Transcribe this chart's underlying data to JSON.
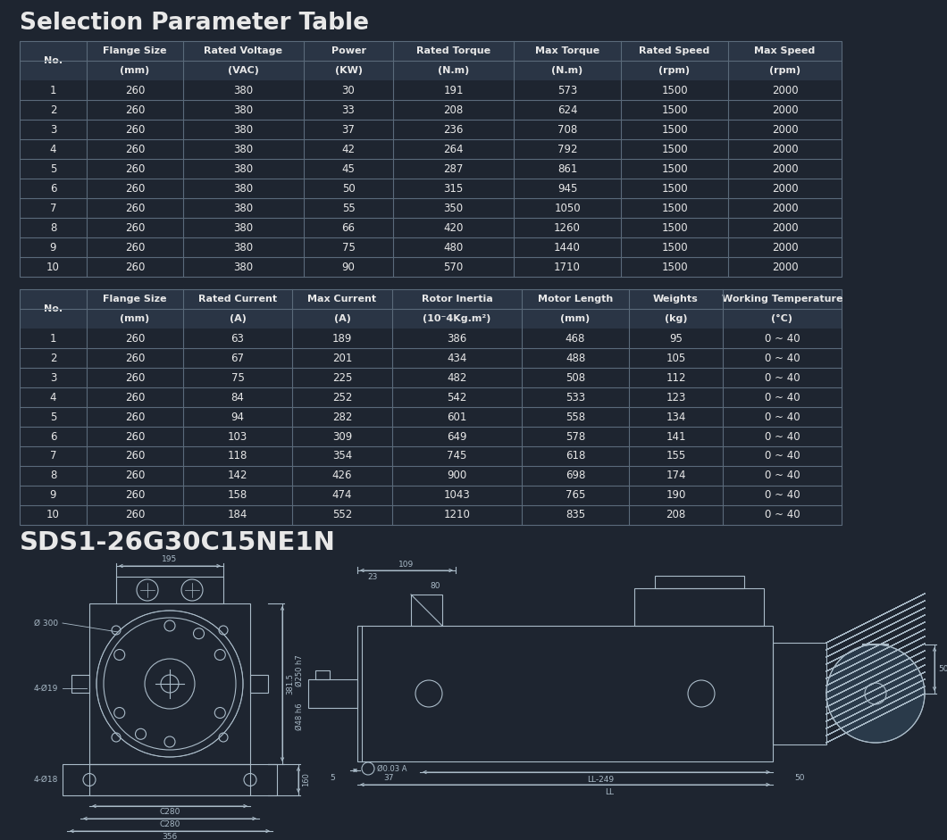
{
  "title": "Selection Parameter Table",
  "model": "SDS1-26G30C15NE1N",
  "bg_color": "#1e2530",
  "header_bg": "#2a3545",
  "text_color": "#e8e8e8",
  "border_color": "#5a6a7a",
  "line_color": "#aabbc8",
  "table1_col_headers": [
    "No.",
    "Flange Size",
    "Rated Voltage",
    "Power",
    "Rated Torque",
    "Max Torque",
    "Rated Speed",
    "Max Speed"
  ],
  "table1_col_subs": [
    "",
    "(mm)",
    "(VAC)",
    "(KW)",
    "(N.m)",
    "(N.m)",
    "(rpm)",
    "(rpm)"
  ],
  "table1_col_widths": [
    75,
    108,
    135,
    100,
    135,
    120,
    120,
    127
  ],
  "table1_data": [
    [
      "1",
      "260",
      "380",
      "30",
      "191",
      "573",
      "1500",
      "2000"
    ],
    [
      "2",
      "260",
      "380",
      "33",
      "208",
      "624",
      "1500",
      "2000"
    ],
    [
      "3",
      "260",
      "380",
      "37",
      "236",
      "708",
      "1500",
      "2000"
    ],
    [
      "4",
      "260",
      "380",
      "42",
      "264",
      "792",
      "1500",
      "2000"
    ],
    [
      "5",
      "260",
      "380",
      "45",
      "287",
      "861",
      "1500",
      "2000"
    ],
    [
      "6",
      "260",
      "380",
      "50",
      "315",
      "945",
      "1500",
      "2000"
    ],
    [
      "7",
      "260",
      "380",
      "55",
      "350",
      "1050",
      "1500",
      "2000"
    ],
    [
      "8",
      "260",
      "380",
      "66",
      "420",
      "1260",
      "1500",
      "2000"
    ],
    [
      "9",
      "260",
      "380",
      "75",
      "480",
      "1440",
      "1500",
      "2000"
    ],
    [
      "10",
      "260",
      "380",
      "90",
      "570",
      "1710",
      "1500",
      "2000"
    ]
  ],
  "table2_col_headers": [
    "No.",
    "Flange Size",
    "Rated Current",
    "Max Current",
    "Rotor Inertia",
    "Motor Length",
    "Weights",
    "Working Temperature"
  ],
  "table2_col_subs": [
    "",
    "(mm)",
    "(A)",
    "(A)",
    "(10⁻4Kg.m²)",
    "(mm)",
    "(kg)",
    "(°C)"
  ],
  "table2_col_widths": [
    75,
    108,
    122,
    112,
    145,
    120,
    105,
    133
  ],
  "table2_data": [
    [
      "1",
      "260",
      "63",
      "189",
      "386",
      "468",
      "95",
      "0 ~ 40"
    ],
    [
      "2",
      "260",
      "67",
      "201",
      "434",
      "488",
      "105",
      "0 ~ 40"
    ],
    [
      "3",
      "260",
      "75",
      "225",
      "482",
      "508",
      "112",
      "0 ~ 40"
    ],
    [
      "4",
      "260",
      "84",
      "252",
      "542",
      "533",
      "123",
      "0 ~ 40"
    ],
    [
      "5",
      "260",
      "94",
      "282",
      "601",
      "558",
      "134",
      "0 ~ 40"
    ],
    [
      "6",
      "260",
      "103",
      "309",
      "649",
      "578",
      "141",
      "0 ~ 40"
    ],
    [
      "7",
      "260",
      "118",
      "354",
      "745",
      "618",
      "155",
      "0 ~ 40"
    ],
    [
      "8",
      "260",
      "142",
      "426",
      "900",
      "698",
      "174",
      "0 ~ 40"
    ],
    [
      "9",
      "260",
      "158",
      "474",
      "1043",
      "765",
      "190",
      "0 ~ 40"
    ],
    [
      "10",
      "260",
      "184",
      "552",
      "1210",
      "835",
      "208",
      "0 ~ 40"
    ]
  ]
}
